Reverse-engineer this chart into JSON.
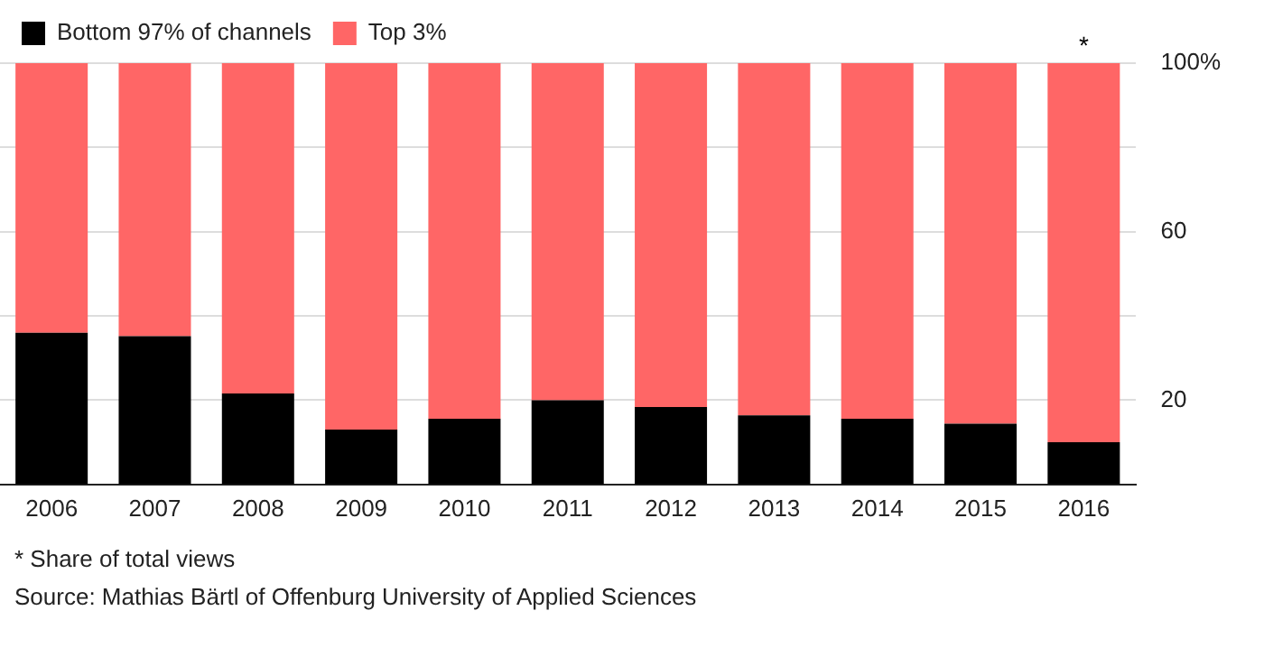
{
  "chart_data": {
    "type": "bar",
    "stacked": true,
    "categories": [
      "2006",
      "2007",
      "2008",
      "2009",
      "2010",
      "2011",
      "2012",
      "2013",
      "2014",
      "2015",
      "2016"
    ],
    "series": [
      {
        "name": "Bottom 97% of channels",
        "color": "#000000",
        "values": [
          36,
          35.2,
          21.6,
          13,
          15.6,
          20,
          18.4,
          16.4,
          15.6,
          14.4,
          10
        ]
      },
      {
        "name": "Top 3%",
        "color": "#ff6666",
        "values": [
          64,
          64.8,
          78.4,
          87,
          84.4,
          80,
          81.6,
          83.6,
          84.4,
          85.6,
          90
        ]
      }
    ],
    "ylim": [
      0,
      100
    ],
    "yticks": [
      20,
      {
        "value": 40,
        "label": null
      },
      60,
      {
        "value": 80,
        "label": null
      },
      {
        "value": 100,
        "label": "100%"
      }
    ],
    "grid": "y",
    "legend": "top left",
    "annotations": [
      {
        "text": "*",
        "x": "2016",
        "y": 100
      },
      "* Share of total views",
      "Source: Mathias Bärtl of Offenburg University of Applied Sciences"
    ]
  }
}
